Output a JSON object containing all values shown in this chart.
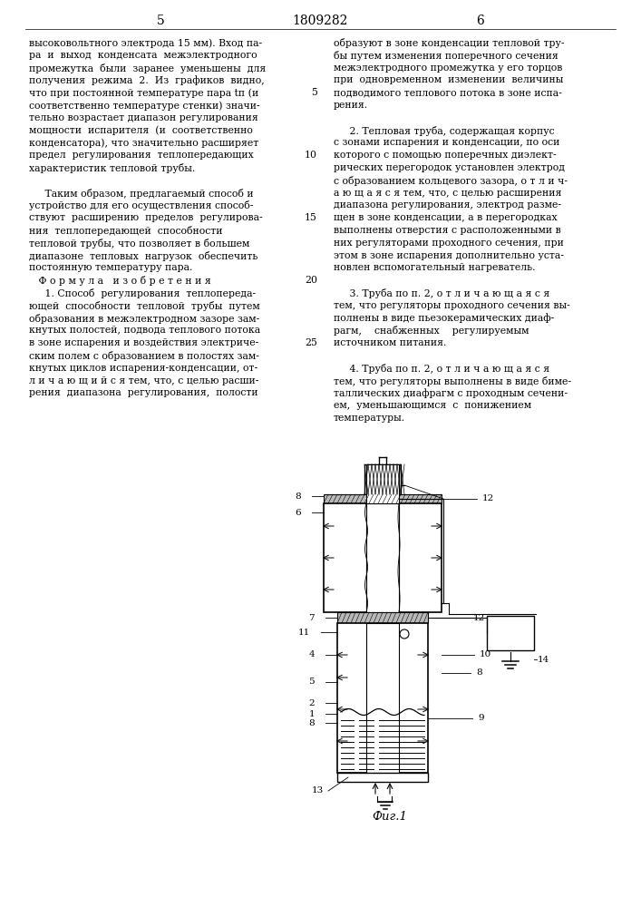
{
  "page_num_left": "5",
  "page_num_center": "1809282",
  "page_num_right": "6",
  "left_col": [
    "высоковольтного электрода 15 мм). Вход па-",
    "ра  и  выход  конденсата  межэлектродного",
    "промежутка  были  заранее  уменьшены  для",
    "получения  режима  2.  Из  графиков  видно,",
    "что при постоянной температуре пара tп (и",
    "соответственно температуре стенки) значи-",
    "тельно возрастает диапазон регулирования",
    "мощности  испарителя  (и  соответственно",
    "конденсатора), что значительно расширяет",
    "предел  регулирования  теплопередающих",
    "характеристик тепловой трубы.",
    "",
    "     Таким образом, предлагаемый способ и",
    "устройство для его осуществления способ-",
    "ствуют  расширению  пределов  регулирова-",
    "ния  теплопередающей  способности",
    "тепловой трубы, что позволяет в большем",
    "диапазоне  тепловых  нагрузок  обеспечить",
    "постоянную температуру пара.",
    "   Ф о р м у л а   и з о б р е т е н и я",
    "     1. Способ  регулирования  теплопереда-",
    "ющей  способности  тепловой  трубы  путем",
    "образования в межэлектродном зазоре зам-",
    "кнутых полостей, подвода теплового потока",
    "в зоне испарения и воздействия электриче-",
    "ским полем с образованием в полостях зам-",
    "кнутых циклов испарения-конденсации, от-",
    "л и ч а ю щ и й с я тем, что, с целью расши-",
    "рения  диапазона  регулирования,  полости"
  ],
  "right_col": [
    "образуют в зоне конденсации тепловой тру-",
    "бы путем изменения поперечного сечения",
    "межэлектродного промежутка у его торцов",
    "при  одновременном  изменении  величины",
    "подводимого теплового потока в зоне испа-",
    "рения.",
    "",
    "     2. Тепловая труба, содержащая корпус",
    "с зонами испарения и конденсации, по оси",
    "которого с помощью поперечных диэлект-",
    "рических перегородок установлен электрод",
    "с образованием кольцевого зазора, о т л и ч-",
    "а ю щ а я с я тем, что, с целью расширения",
    "диапазона регулирования, электрод разме-",
    "щен в зоне конденсации, а в перегородках",
    "выполнены отверстия с расположенными в",
    "них регуляторами проходного сечения, при",
    "этом в зоне испарения дополнительно уста-",
    "новлен вспомогательный нагреватель.",
    "",
    "     3. Труба по п. 2, о т л и ч а ю щ а я с я",
    "тем, что регуляторы проходного сечения вы-",
    "полнены в виде пьезокерамических диаф-",
    "рагм,    снабженных    регулируемым",
    "источником питания.",
    "",
    "     4. Труба по п. 2, о т л и ч а ю щ а я с я",
    "тем, что регуляторы выполнены в виде биме-",
    "таллических диафрагм с проходным сечени-",
    "ем,  уменьшающимся  с  понижением",
    "температуры."
  ],
  "fig_caption": "Фиг.1",
  "line_nums_idx": [
    4,
    9,
    14,
    19,
    24
  ],
  "line_nums_val": [
    "5",
    "10",
    "15",
    "20",
    "25"
  ]
}
